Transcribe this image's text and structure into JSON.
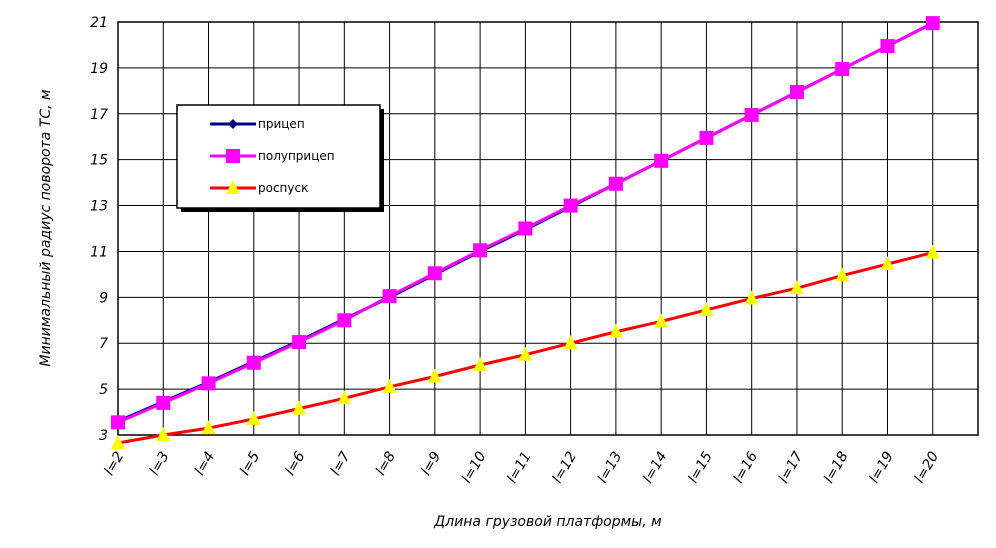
{
  "chart_data": {
    "type": "line",
    "x_label": "Длина грузовой платформы, м",
    "y_label": "Минимальный радиус поворота ТС, м",
    "categories": [
      "l=2",
      "l=3",
      "l=4",
      "l=5",
      "l=6",
      "l=7",
      "l=8",
      "l=9",
      "l=10",
      "l=11",
      "l=12",
      "l=13",
      "l=14",
      "l=15",
      "l=16",
      "l=17",
      "l=18",
      "l=19",
      "l=20"
    ],
    "series": [
      {
        "name": "прицеп",
        "color": "#000080",
        "marker": "diamond",
        "values": [
          3.6,
          4.45,
          5.3,
          6.2,
          7.1,
          8.05,
          9.0,
          10.0,
          11.0,
          11.95,
          12.95,
          13.95,
          14.95,
          15.95,
          16.95,
          17.95,
          18.95,
          19.95,
          20.95
        ]
      },
      {
        "name": "полуприцеп",
        "color": "#ff00ff",
        "marker": "square",
        "values": [
          3.55,
          4.4,
          5.25,
          6.15,
          7.05,
          8.0,
          9.05,
          10.05,
          11.05,
          12.0,
          13.0,
          13.95,
          14.95,
          15.95,
          16.95,
          17.95,
          18.95,
          19.95,
          20.95
        ]
      },
      {
        "name": "роспуск",
        "color": "#ff0000",
        "marker": "triangle",
        "values": [
          2.65,
          3.0,
          3.3,
          3.7,
          4.15,
          4.6,
          5.1,
          5.55,
          6.05,
          6.5,
          7.0,
          7.5,
          7.95,
          8.45,
          8.95,
          9.4,
          9.95,
          10.45,
          10.95
        ]
      }
    ],
    "ylim": [
      3,
      21
    ],
    "yticks": [
      3,
      5,
      7,
      9,
      11,
      13,
      15,
      17,
      19,
      21
    ],
    "grid": true
  }
}
